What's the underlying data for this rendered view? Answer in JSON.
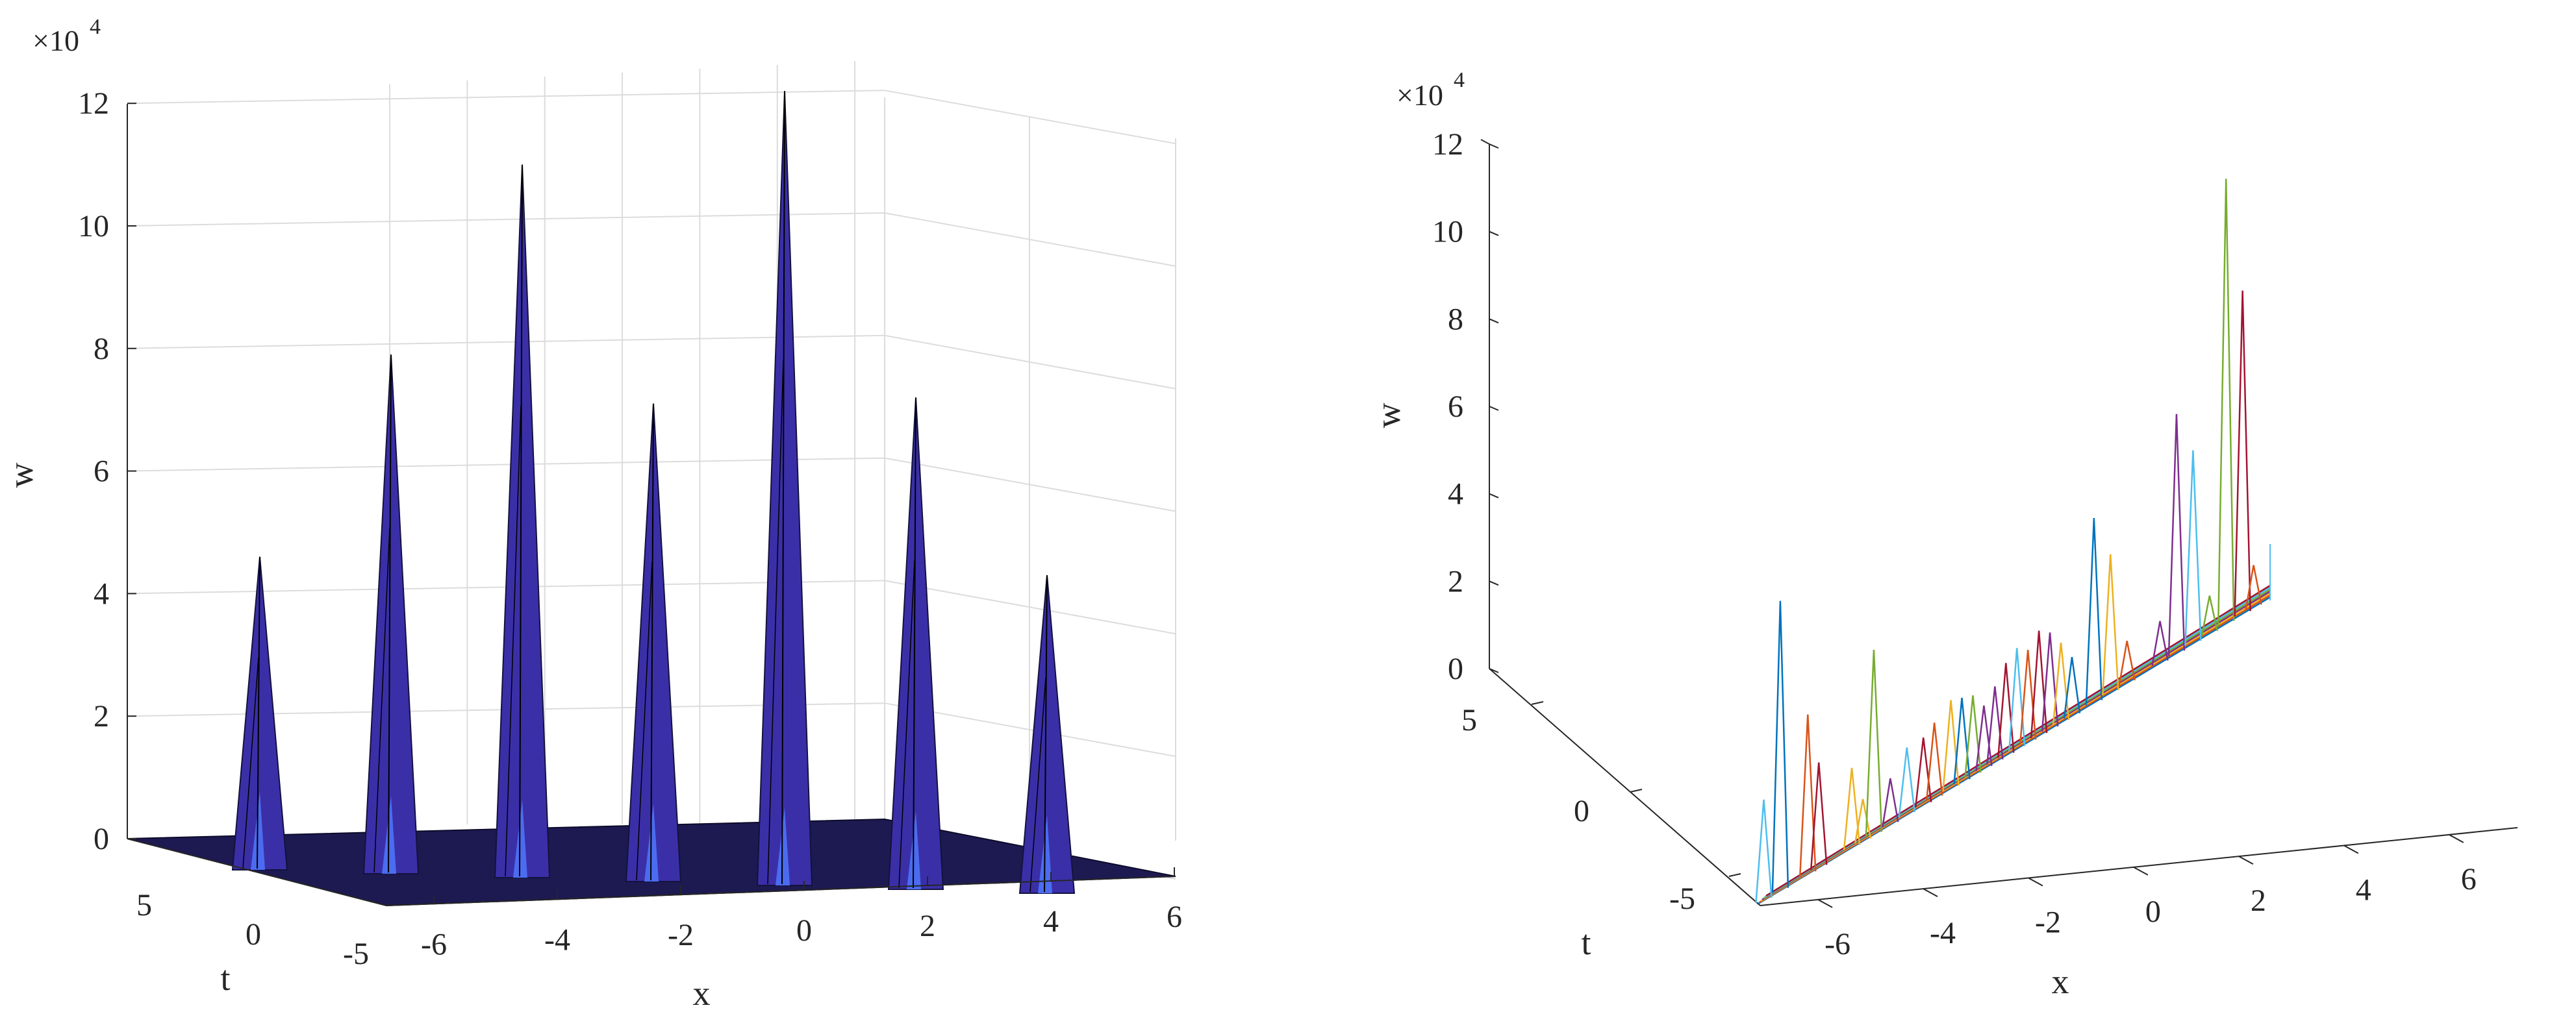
{
  "chart_data": [
    {
      "type": "surface",
      "title": "",
      "xlabel": "x",
      "ylabel": "t",
      "zlabel": "w",
      "z_multiplier": "×10",
      "z_exponent": "4",
      "xlim": [
        -6.5,
        6.5
      ],
      "zlim": [
        0,
        12
      ],
      "x_ticks": [
        "-6",
        "-4",
        "-2",
        "0",
        "2",
        "4",
        "6"
      ],
      "t_ticks": [
        "5",
        "0",
        "-5"
      ],
      "z_ticks": [
        "0",
        "2",
        "4",
        "6",
        "8",
        "10",
        "12"
      ],
      "grid": true,
      "surface_color": "#3b2fa8",
      "peaks": [
        {
          "x": -6.6,
          "w": 4.6
        },
        {
          "x": -4.6,
          "w": 7.9
        },
        {
          "x": -2.6,
          "w": 11.0
        },
        {
          "x": -0.6,
          "w": 7.1
        },
        {
          "x": 1.4,
          "w": 12.2
        },
        {
          "x": 3.4,
          "w": 7.2
        },
        {
          "x": 5.4,
          "w": 4.3
        }
      ]
    },
    {
      "type": "line3d",
      "title": "",
      "xlabel": "x",
      "ylabel": "t",
      "zlabel": "w",
      "z_multiplier": "×10",
      "z_exponent": "4",
      "xlim": [
        -7,
        6
      ],
      "zlim": [
        0,
        12
      ],
      "x_ticks": [
        "-6",
        "-4",
        "-2",
        "0",
        "2",
        "4",
        "6"
      ],
      "t_ticks": [
        "5",
        "0",
        "-5"
      ],
      "z_ticks": [
        "0",
        "2",
        "4",
        "6",
        "8",
        "10",
        "12"
      ],
      "grid": false,
      "line_colors": [
        "#0072bd",
        "#d95319",
        "#edb120",
        "#7e2f8e",
        "#77ac30",
        "#4dbeee",
        "#a2142f"
      ],
      "peaks": [
        {
          "x": -6.9,
          "w": 2.4,
          "c": 5
        },
        {
          "x": -6.6,
          "w": 6.9,
          "c": 0
        },
        {
          "x": -6.1,
          "w": 3.8,
          "c": 1
        },
        {
          "x": -5.9,
          "w": 2.5,
          "c": 6
        },
        {
          "x": -5.3,
          "w": 1.9,
          "c": 2
        },
        {
          "x": -5.1,
          "w": 1.0,
          "c": 2
        },
        {
          "x": -4.9,
          "w": 4.4,
          "c": 4
        },
        {
          "x": -4.6,
          "w": 1.1,
          "c": 3
        },
        {
          "x": -4.3,
          "w": 1.6,
          "c": 5
        },
        {
          "x": -4.0,
          "w": 1.6,
          "c": 6
        },
        {
          "x": -3.8,
          "w": 1.8,
          "c": 1
        },
        {
          "x": -3.5,
          "w": 2.1,
          "c": 2
        },
        {
          "x": -3.3,
          "w": 2.0,
          "c": 0
        },
        {
          "x": -3.1,
          "w": 1.9,
          "c": 4
        },
        {
          "x": -2.9,
          "w": 1.5,
          "c": 3
        },
        {
          "x": -2.7,
          "w": 1.8,
          "c": 3
        },
        {
          "x": -2.5,
          "w": 2.2,
          "c": 6
        },
        {
          "x": -2.3,
          "w": 2.4,
          "c": 5
        },
        {
          "x": -2.1,
          "w": 2.2,
          "c": 1
        },
        {
          "x": -1.9,
          "w": 2.5,
          "c": 6
        },
        {
          "x": -1.7,
          "w": 2.3,
          "c": 3
        },
        {
          "x": -1.5,
          "w": 1.9,
          "c": 2
        },
        {
          "x": -1.3,
          "w": 1.4,
          "c": 0
        },
        {
          "x": -0.9,
          "w": 4.4,
          "c": 0
        },
        {
          "x": -0.6,
          "w": 3.3,
          "c": 2
        },
        {
          "x": -0.3,
          "w": 1.0,
          "c": 1
        },
        {
          "x": 0.3,
          "w": 1.0,
          "c": 3
        },
        {
          "x": 0.6,
          "w": 5.7,
          "c": 3
        },
        {
          "x": 0.9,
          "w": 4.6,
          "c": 5
        },
        {
          "x": 1.2,
          "w": 0.9,
          "c": 4
        },
        {
          "x": 1.5,
          "w": 10.6,
          "c": 4
        },
        {
          "x": 1.8,
          "w": 7.7,
          "c": 6
        },
        {
          "x": 2.0,
          "w": 1.0,
          "c": 1
        }
      ]
    }
  ]
}
